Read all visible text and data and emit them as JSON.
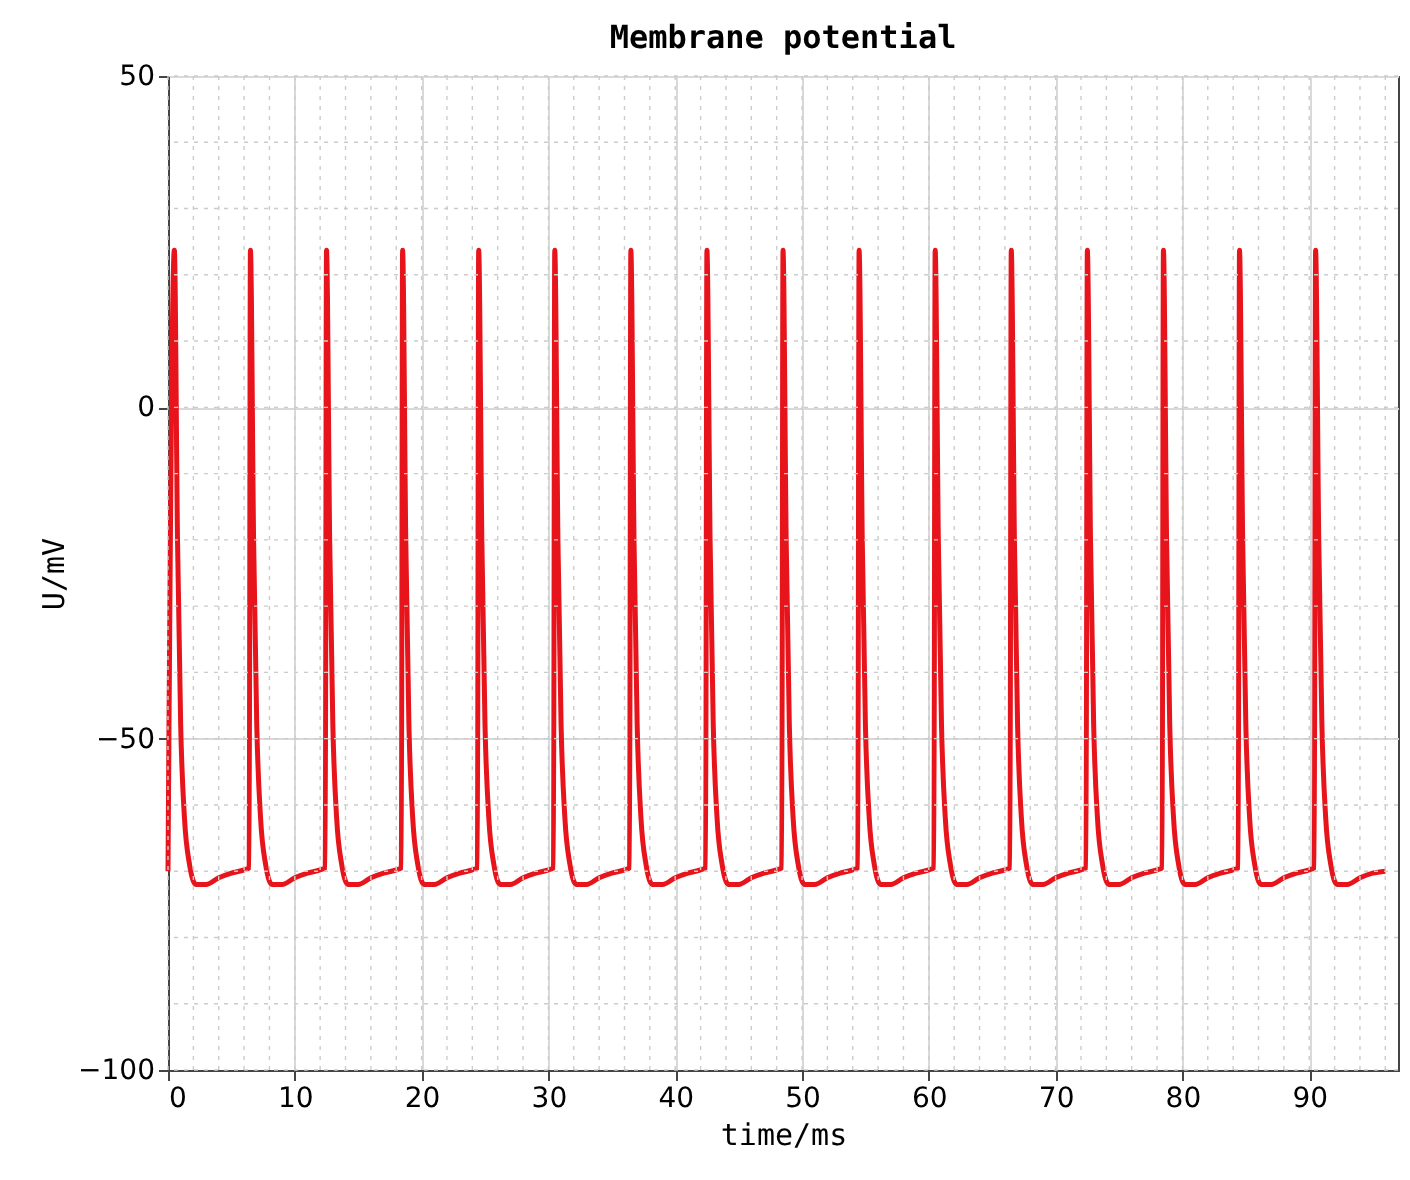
{
  "chart_data": {
    "type": "line",
    "title": "Membrane potential",
    "xlabel": "time/ms",
    "ylabel": "U/mV",
    "xlim": [
      0,
      97
    ],
    "xticks": [
      0,
      10,
      20,
      30,
      40,
      50,
      60,
      70,
      80,
      90
    ],
    "ylim": [
      -100,
      50
    ],
    "yticks": [
      -100,
      -50,
      0,
      50
    ],
    "grid": true,
    "marker": "none",
    "line_style": "solid",
    "series": [
      {
        "color": "#e8141b",
        "x": [
          0,
          0.5,
          0.75,
          1.0,
          1.3,
          1.7,
          2.2,
          3.0,
          4.0,
          5.0,
          6.0,
          6.4,
          6.5,
          6.75,
          7.0,
          7.3,
          7.7,
          8.2,
          9.0,
          10.0,
          11.0,
          12.0,
          12.4,
          12.5,
          12.75,
          13.0,
          13.3,
          13.7,
          14.2,
          15.0,
          16.0,
          17.0,
          18.0,
          18.4,
          18.5,
          18.75,
          19.0,
          19.3,
          19.7,
          20.2,
          21.0,
          22.0,
          23.0,
          24.0,
          24.4,
          24.5,
          24.75,
          25.0,
          25.3,
          25.7,
          26.2,
          27.0,
          28.0,
          29.0,
          30.0,
          30.4,
          30.5,
          30.75,
          31.0,
          31.3,
          31.7,
          32.2,
          33.0,
          34.0,
          35.0,
          36.0,
          36.4,
          36.5,
          36.75,
          37.0,
          37.3,
          37.7,
          38.2,
          39.0,
          40.0,
          41.0,
          42.0,
          42.4,
          42.5,
          42.75,
          43.0,
          43.3,
          43.7,
          44.2,
          45.0,
          46.0,
          47.0,
          48.0,
          48.4,
          48.5,
          48.75,
          49.0,
          49.3,
          49.7,
          50.2,
          51.0,
          52.0,
          53.0,
          54.0,
          54.4,
          54.5,
          54.75,
          55.0,
          55.3,
          55.7,
          56.2,
          57.0,
          58.0,
          59.0,
          60.0,
          60.4,
          60.5,
          60.75,
          61.0,
          61.3,
          61.7,
          62.2,
          63.0,
          64.0,
          65.0,
          66.0,
          66.4,
          66.5,
          66.75,
          67.0,
          67.3,
          67.7,
          68.2,
          69.0,
          70.0,
          71.0,
          72.0,
          72.4,
          72.5,
          72.75,
          73.0,
          73.3,
          73.7,
          74.2,
          75.0,
          76.0,
          77.0,
          78.0,
          78.4,
          78.5,
          78.75,
          79.0,
          79.3,
          79.7,
          80.2,
          81.0,
          82.0,
          83.0,
          84.0,
          84.4,
          84.5,
          84.75,
          85.0,
          85.3,
          85.7,
          86.2,
          87.0,
          88.0,
          89.0,
          90.0,
          90.4,
          90.5,
          90.75,
          91.0,
          91.3,
          91.7,
          92.2,
          93.0,
          94.0,
          95.0,
          96.0
        ],
        "values": [
          -70,
          23.7,
          -20,
          -48,
          -62,
          -69,
          -72,
          -72,
          -71,
          -70.3,
          -69.8,
          -69.5,
          23.7,
          -20,
          -48,
          -62,
          -69,
          -72,
          -72,
          -71,
          -70.3,
          -69.8,
          -69.5,
          23.7,
          -20,
          -48,
          -62,
          -69,
          -72,
          -72,
          -71,
          -70.3,
          -69.8,
          -69.5,
          23.7,
          -20,
          -48,
          -62,
          -69,
          -72,
          -72,
          -71,
          -70.3,
          -69.8,
          -69.5,
          23.7,
          -20,
          -48,
          -62,
          -69,
          -72,
          -72,
          -71,
          -70.3,
          -69.8,
          -69.5,
          23.7,
          -20,
          -48,
          -62,
          -69,
          -72,
          -72,
          -71,
          -70.3,
          -69.8,
          -69.5,
          23.7,
          -20,
          -48,
          -62,
          -69,
          -72,
          -72,
          -71,
          -70.3,
          -69.8,
          -69.5,
          23.7,
          -20,
          -48,
          -62,
          -69,
          -72,
          -72,
          -71,
          -70.3,
          -69.8,
          -69.5,
          23.7,
          -20,
          -48,
          -62,
          -69,
          -72,
          -72,
          -71,
          -70.3,
          -69.8,
          -69.5,
          23.7,
          -20,
          -48,
          -62,
          -69,
          -72,
          -72,
          -71,
          -70.3,
          -69.8,
          -69.5,
          23.7,
          -20,
          -48,
          -62,
          -69,
          -72,
          -72,
          -71,
          -70.3,
          -69.8,
          -69.5,
          23.7,
          -20,
          -48,
          -62,
          -69,
          -72,
          -72,
          -71,
          -70.3,
          -69.8,
          -69.5,
          23.7,
          -20,
          -48,
          -62,
          -69,
          -72,
          -72,
          -71,
          -70.3,
          -69.8,
          -69.5,
          23.7,
          -20,
          -48,
          -62,
          -69,
          -72,
          -72,
          -71,
          -70.3,
          -69.8,
          -69.5,
          23.7,
          -20,
          -48,
          -62,
          -69,
          -72,
          -72,
          -71,
          -70.3,
          -69.8,
          -69.5,
          23.7,
          -20,
          -48,
          -62,
          -69,
          -72,
          -72,
          -71,
          -70.3,
          -70
        ]
      }
    ]
  }
}
